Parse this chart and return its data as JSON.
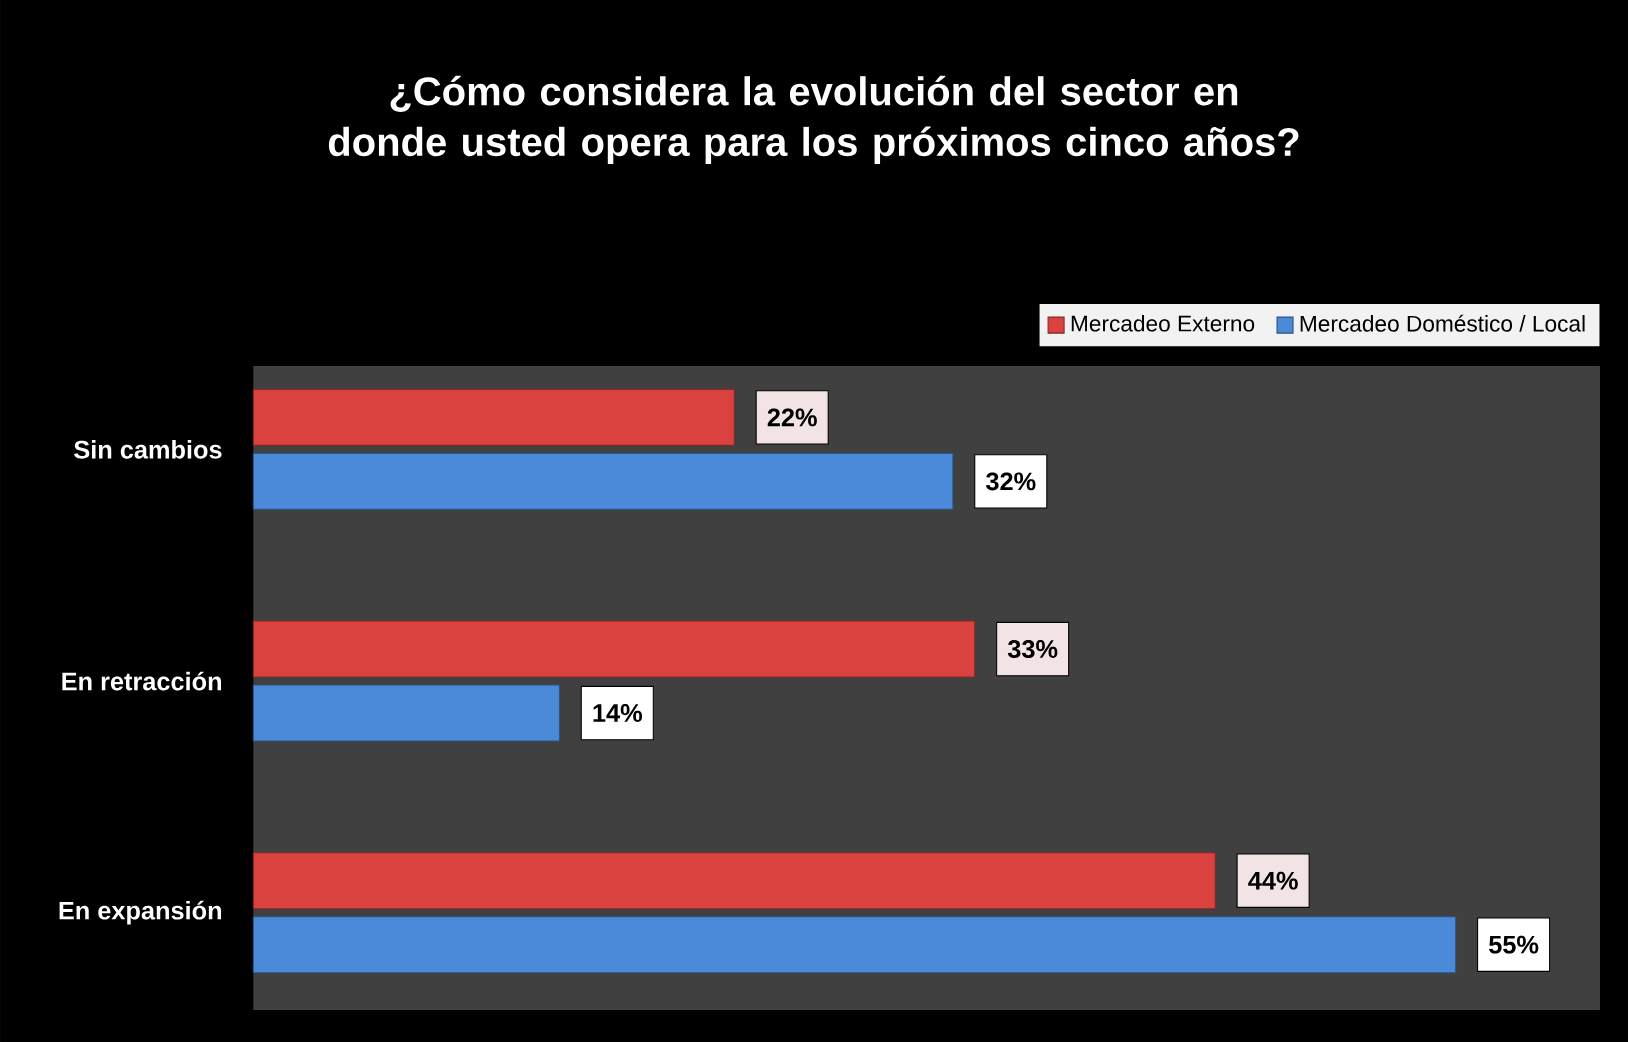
{
  "chart_data": {
    "type": "bar",
    "orientation": "horizontal",
    "title": "¿Cómo considera la evolución del sector en donde usted opera para los próximos cinco años?",
    "categories": [
      "Sin cambios",
      "En retracción",
      "En expansión"
    ],
    "series": [
      {
        "name": "Mercadeo Externo",
        "color": "#d9423f",
        "values": [
          22,
          33,
          44
        ],
        "value_labels": [
          "22%",
          "33%",
          "44%"
        ]
      },
      {
        "name": "Mercadeo Doméstico / Local",
        "color": "#4a8ad8",
        "values": [
          32,
          14,
          55
        ],
        "value_labels": [
          "32%",
          "14%",
          "55%"
        ]
      }
    ],
    "legend": "top right"
  }
}
